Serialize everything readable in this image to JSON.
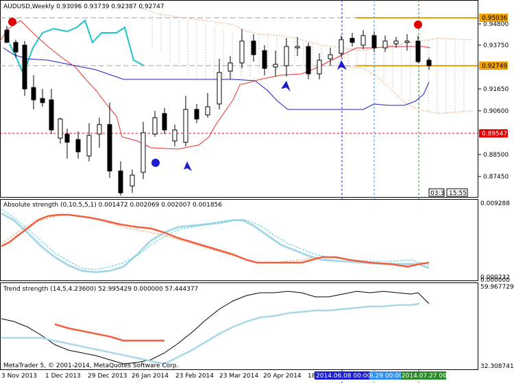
{
  "main_chart": {
    "title": "AUDUSD,Weekly",
    "ohlc": "0.93096 0.93739 0.92387 0.92747",
    "price_ticks": [
      "0.94800",
      "0.93750",
      "0.91650",
      "0.90600",
      "0.88500",
      "0.87450"
    ],
    "level_labels": {
      "resistance": "0.95036",
      "current": "0.92749",
      "support": "0.89547"
    },
    "time_boxes": [
      "03:3",
      "15:55"
    ]
  },
  "indicator1": {
    "title": "Absolute strength (0,10,5,5,1) 0.001472 0.002069 0.002007 0.001856",
    "max_label": "0.009288",
    "min_label": "0.000000",
    "min_label_overlap": "0.000232"
  },
  "indicator2": {
    "title": "Trend strength (14,5,4.23600) 52.995429 0.000000 57.444377",
    "max_label": "59.967729",
    "min_label": "32.308741",
    "watermark": "MetaTrader 5, © 2001-2014, MetaQuotes Software Corp."
  },
  "time_axis": {
    "labels": [
      "3 Nov 2013",
      "1 Dec 2013",
      "29 Dec 2013",
      "26 Jan 2014",
      "23 Feb 2014",
      "23 Mar 2014",
      "20 Apr 2014",
      "18"
    ],
    "markers": [
      "2014.06.08 00:00",
      "6.29 00:00",
      "2014.07.27 00:00"
    ]
  },
  "colors": {
    "bull": "#ffffff",
    "bear": "#000000",
    "ma_red": "#e8312a",
    "ma_blue": "#1c1ccc",
    "cyan": "#1cc4cc",
    "orange_dots": "#f2a070",
    "resistance": "#f0a000",
    "support_dash": "#e00000",
    "abs_red": "#f06040",
    "abs_light": "#a8d8e8",
    "abs_orange_dash": "#f0a060",
    "abs_cyan_dash": "#40d0e0",
    "trend_black": "#000000",
    "trend_light": "#a8d8e8",
    "trend_red": "#f06040",
    "marker_blue": "#1c1cd0",
    "marker_lightblue": "#3090f0",
    "marker_green": "#2a8a2a"
  }
}
